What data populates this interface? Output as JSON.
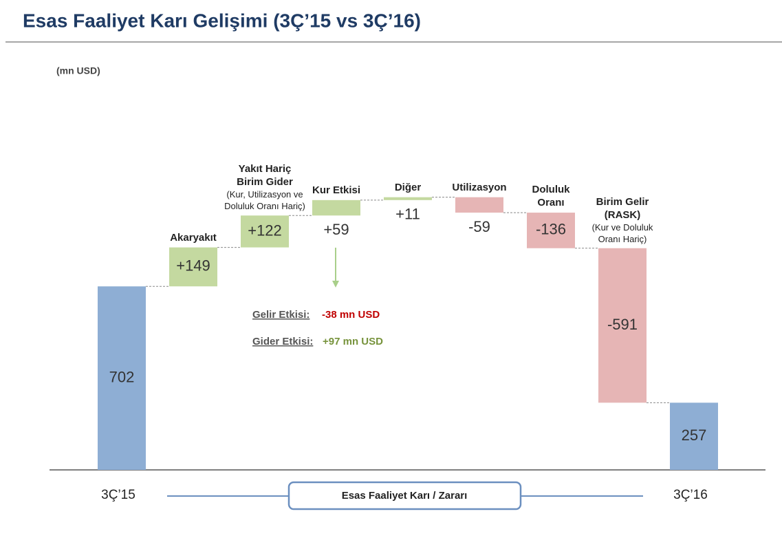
{
  "title": "Esas Faaliyet Karı Gelişimi (3Ç’15 vs 3Ç’16)",
  "chart_data": {
    "type": "waterfall",
    "unit": "(mn USD)",
    "categories": [
      "3Ç’15",
      "Akaryakıt",
      "Yakıt Hariç Birim Gider",
      "Kur Etkisi",
      "Diğer",
      "Utilizasyon",
      "Doluluk Oranı",
      "Birim Gelir (RASK)",
      "3Ç’16"
    ],
    "category_notes": [
      null,
      null,
      "(Kur, Utilizasyon ve Doluluk Oranı Hariç)",
      null,
      null,
      null,
      null,
      "(Kur ve Doluluk Oranı Hariç)",
      null
    ],
    "values": [
      702,
      149,
      122,
      59,
      11,
      -59,
      -136,
      -591,
      257
    ],
    "value_labels": [
      "702",
      "+149",
      "+122",
      "+59",
      "+11",
      "-59",
      "-136",
      "-591",
      "257"
    ],
    "total_indices": [
      0,
      8
    ],
    "colors": {
      "total": "#8eaed4",
      "increase": "#c4d9a0",
      "decrease": "#e6b5b5"
    },
    "ylim": [
      0,
      1750
    ],
    "annotations": [
      {
        "label": "Gelir Etkisi:",
        "value": "-38 mn USD",
        "color": "#c00000"
      },
      {
        "label": "Gider Etkisi:",
        "value": "+97 mn USD",
        "color": "#77933c"
      }
    ],
    "footer": "Esas Faaliyet Karı / Zararı"
  }
}
